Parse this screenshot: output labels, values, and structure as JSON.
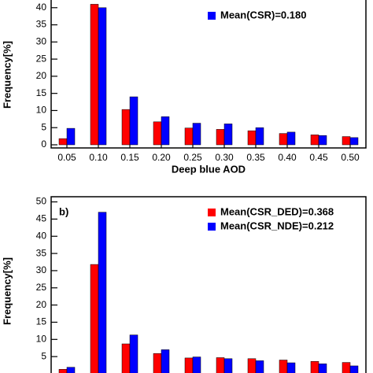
{
  "chart_data": [
    {
      "type": "bar",
      "x_label": "Deep blue AOD",
      "y_label": "Frequency[%]",
      "categories": [
        "0.05",
        "0.10",
        "0.15",
        "0.20",
        "0.25",
        "0.30",
        "0.35",
        "0.40",
        "0.45",
        "0.50"
      ],
      "series": [
        {
          "name": null,
          "color": "#ff0000",
          "values": [
            1.8,
            41,
            10.3,
            6.7,
            4.9,
            4.5,
            4.1,
            3.3,
            2.9,
            2.4
          ]
        },
        {
          "name": "Mean(CSR)=0.180",
          "color": "#0000ff",
          "values": [
            4.8,
            40,
            14,
            8.2,
            6.3,
            6.1,
            5,
            3.7,
            2.7,
            2.1
          ]
        }
      ],
      "ylim": [
        0,
        45
      ],
      "yticks": [
        0,
        5,
        10,
        15,
        20,
        25,
        30,
        35,
        40
      ]
    },
    {
      "type": "bar",
      "panel_label": "b)",
      "y_label": "Frequency[%]",
      "categories": [
        null,
        null,
        null,
        null,
        null,
        null,
        null,
        null,
        null,
        null
      ],
      "series": [
        {
          "name": "Mean(CSR_DED)=0.368",
          "color": "#ff0000",
          "values": [
            1.3,
            31.8,
            8.7,
            5.9,
            4.6,
            4.7,
            4.4,
            4.0,
            3.6,
            3.3
          ]
        },
        {
          "name": "Mean(CSR_NDE)=0.212",
          "color": "#0000ff",
          "values": [
            1.9,
            47,
            11.3,
            7.0,
            4.9,
            4.4,
            3.8,
            3.2,
            2.9,
            2.3
          ]
        }
      ],
      "ylim": [
        0,
        51.5
      ],
      "yticks": [
        5,
        10,
        15,
        20,
        25,
        30,
        35,
        40,
        45,
        50
      ]
    }
  ]
}
